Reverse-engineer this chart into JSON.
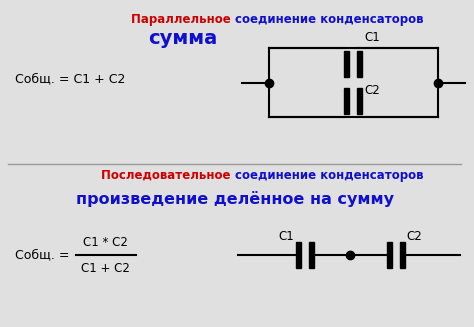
{
  "bg_color": "#e0e0e0",
  "title1_red": "Параллельное ",
  "title1_blue": "соединение конденсаторов",
  "subtitle1": "сумма",
  "formula1": "Собщ. = С1 + С2",
  "title2_red": "Последовательное ",
  "title2_blue": "соединение конденсаторов",
  "subtitle2": "произведение делённое на сумму",
  "formula2_left": "Собщ. = ",
  "formula2_num": "С1 * С2",
  "formula2_den": "С1 + С2",
  "label_C1_par": "С1",
  "label_C2_par": "С2",
  "label_C1_ser": "С1",
  "label_C2_ser": "С2",
  "text_color": "#000000",
  "red_color": "#cc0000",
  "blue_color": "#1010cc"
}
